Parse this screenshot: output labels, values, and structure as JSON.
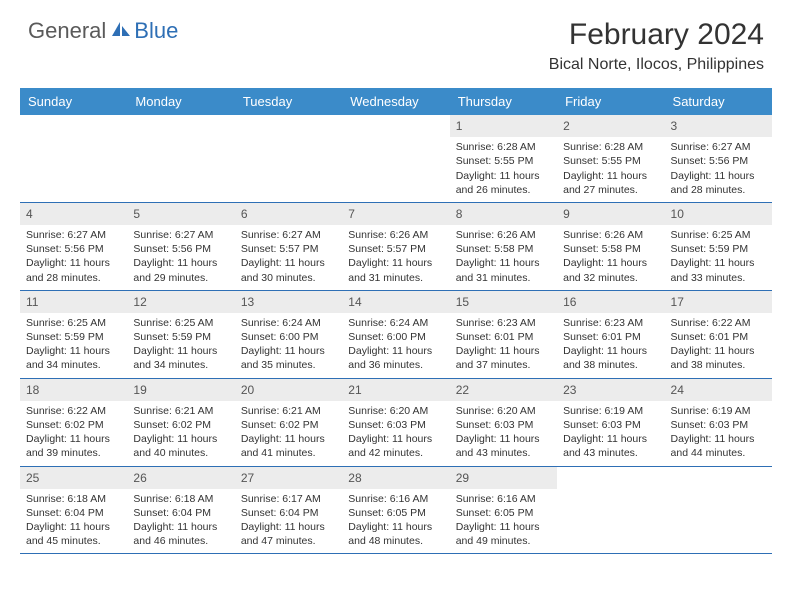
{
  "logo": {
    "part1": "General",
    "part2": "Blue"
  },
  "title": "February 2024",
  "location": "Bical Norte, Ilocos, Philippines",
  "colors": {
    "header_bg": "#3b8bc9",
    "header_text": "#ffffff",
    "daynum_bg": "#ececec",
    "border": "#2e6fb5",
    "logo_gray": "#5a5a5a",
    "logo_blue": "#2e6fb5",
    "body_text": "#333333",
    "background": "#ffffff"
  },
  "day_names": [
    "Sunday",
    "Monday",
    "Tuesday",
    "Wednesday",
    "Thursday",
    "Friday",
    "Saturday"
  ],
  "weeks": [
    [
      {
        "day": "",
        "sunrise": "",
        "sunset": "",
        "daylight": ""
      },
      {
        "day": "",
        "sunrise": "",
        "sunset": "",
        "daylight": ""
      },
      {
        "day": "",
        "sunrise": "",
        "sunset": "",
        "daylight": ""
      },
      {
        "day": "",
        "sunrise": "",
        "sunset": "",
        "daylight": ""
      },
      {
        "day": "1",
        "sunrise": "Sunrise: 6:28 AM",
        "sunset": "Sunset: 5:55 PM",
        "daylight": "Daylight: 11 hours and 26 minutes."
      },
      {
        "day": "2",
        "sunrise": "Sunrise: 6:28 AM",
        "sunset": "Sunset: 5:55 PM",
        "daylight": "Daylight: 11 hours and 27 minutes."
      },
      {
        "day": "3",
        "sunrise": "Sunrise: 6:27 AM",
        "sunset": "Sunset: 5:56 PM",
        "daylight": "Daylight: 11 hours and 28 minutes."
      }
    ],
    [
      {
        "day": "4",
        "sunrise": "Sunrise: 6:27 AM",
        "sunset": "Sunset: 5:56 PM",
        "daylight": "Daylight: 11 hours and 28 minutes."
      },
      {
        "day": "5",
        "sunrise": "Sunrise: 6:27 AM",
        "sunset": "Sunset: 5:56 PM",
        "daylight": "Daylight: 11 hours and 29 minutes."
      },
      {
        "day": "6",
        "sunrise": "Sunrise: 6:27 AM",
        "sunset": "Sunset: 5:57 PM",
        "daylight": "Daylight: 11 hours and 30 minutes."
      },
      {
        "day": "7",
        "sunrise": "Sunrise: 6:26 AM",
        "sunset": "Sunset: 5:57 PM",
        "daylight": "Daylight: 11 hours and 31 minutes."
      },
      {
        "day": "8",
        "sunrise": "Sunrise: 6:26 AM",
        "sunset": "Sunset: 5:58 PM",
        "daylight": "Daylight: 11 hours and 31 minutes."
      },
      {
        "day": "9",
        "sunrise": "Sunrise: 6:26 AM",
        "sunset": "Sunset: 5:58 PM",
        "daylight": "Daylight: 11 hours and 32 minutes."
      },
      {
        "day": "10",
        "sunrise": "Sunrise: 6:25 AM",
        "sunset": "Sunset: 5:59 PM",
        "daylight": "Daylight: 11 hours and 33 minutes."
      }
    ],
    [
      {
        "day": "11",
        "sunrise": "Sunrise: 6:25 AM",
        "sunset": "Sunset: 5:59 PM",
        "daylight": "Daylight: 11 hours and 34 minutes."
      },
      {
        "day": "12",
        "sunrise": "Sunrise: 6:25 AM",
        "sunset": "Sunset: 5:59 PM",
        "daylight": "Daylight: 11 hours and 34 minutes."
      },
      {
        "day": "13",
        "sunrise": "Sunrise: 6:24 AM",
        "sunset": "Sunset: 6:00 PM",
        "daylight": "Daylight: 11 hours and 35 minutes."
      },
      {
        "day": "14",
        "sunrise": "Sunrise: 6:24 AM",
        "sunset": "Sunset: 6:00 PM",
        "daylight": "Daylight: 11 hours and 36 minutes."
      },
      {
        "day": "15",
        "sunrise": "Sunrise: 6:23 AM",
        "sunset": "Sunset: 6:01 PM",
        "daylight": "Daylight: 11 hours and 37 minutes."
      },
      {
        "day": "16",
        "sunrise": "Sunrise: 6:23 AM",
        "sunset": "Sunset: 6:01 PM",
        "daylight": "Daylight: 11 hours and 38 minutes."
      },
      {
        "day": "17",
        "sunrise": "Sunrise: 6:22 AM",
        "sunset": "Sunset: 6:01 PM",
        "daylight": "Daylight: 11 hours and 38 minutes."
      }
    ],
    [
      {
        "day": "18",
        "sunrise": "Sunrise: 6:22 AM",
        "sunset": "Sunset: 6:02 PM",
        "daylight": "Daylight: 11 hours and 39 minutes."
      },
      {
        "day": "19",
        "sunrise": "Sunrise: 6:21 AM",
        "sunset": "Sunset: 6:02 PM",
        "daylight": "Daylight: 11 hours and 40 minutes."
      },
      {
        "day": "20",
        "sunrise": "Sunrise: 6:21 AM",
        "sunset": "Sunset: 6:02 PM",
        "daylight": "Daylight: 11 hours and 41 minutes."
      },
      {
        "day": "21",
        "sunrise": "Sunrise: 6:20 AM",
        "sunset": "Sunset: 6:03 PM",
        "daylight": "Daylight: 11 hours and 42 minutes."
      },
      {
        "day": "22",
        "sunrise": "Sunrise: 6:20 AM",
        "sunset": "Sunset: 6:03 PM",
        "daylight": "Daylight: 11 hours and 43 minutes."
      },
      {
        "day": "23",
        "sunrise": "Sunrise: 6:19 AM",
        "sunset": "Sunset: 6:03 PM",
        "daylight": "Daylight: 11 hours and 43 minutes."
      },
      {
        "day": "24",
        "sunrise": "Sunrise: 6:19 AM",
        "sunset": "Sunset: 6:03 PM",
        "daylight": "Daylight: 11 hours and 44 minutes."
      }
    ],
    [
      {
        "day": "25",
        "sunrise": "Sunrise: 6:18 AM",
        "sunset": "Sunset: 6:04 PM",
        "daylight": "Daylight: 11 hours and 45 minutes."
      },
      {
        "day": "26",
        "sunrise": "Sunrise: 6:18 AM",
        "sunset": "Sunset: 6:04 PM",
        "daylight": "Daylight: 11 hours and 46 minutes."
      },
      {
        "day": "27",
        "sunrise": "Sunrise: 6:17 AM",
        "sunset": "Sunset: 6:04 PM",
        "daylight": "Daylight: 11 hours and 47 minutes."
      },
      {
        "day": "28",
        "sunrise": "Sunrise: 6:16 AM",
        "sunset": "Sunset: 6:05 PM",
        "daylight": "Daylight: 11 hours and 48 minutes."
      },
      {
        "day": "29",
        "sunrise": "Sunrise: 6:16 AM",
        "sunset": "Sunset: 6:05 PM",
        "daylight": "Daylight: 11 hours and 49 minutes."
      },
      {
        "day": "",
        "sunrise": "",
        "sunset": "",
        "daylight": ""
      },
      {
        "day": "",
        "sunrise": "",
        "sunset": "",
        "daylight": ""
      }
    ]
  ]
}
